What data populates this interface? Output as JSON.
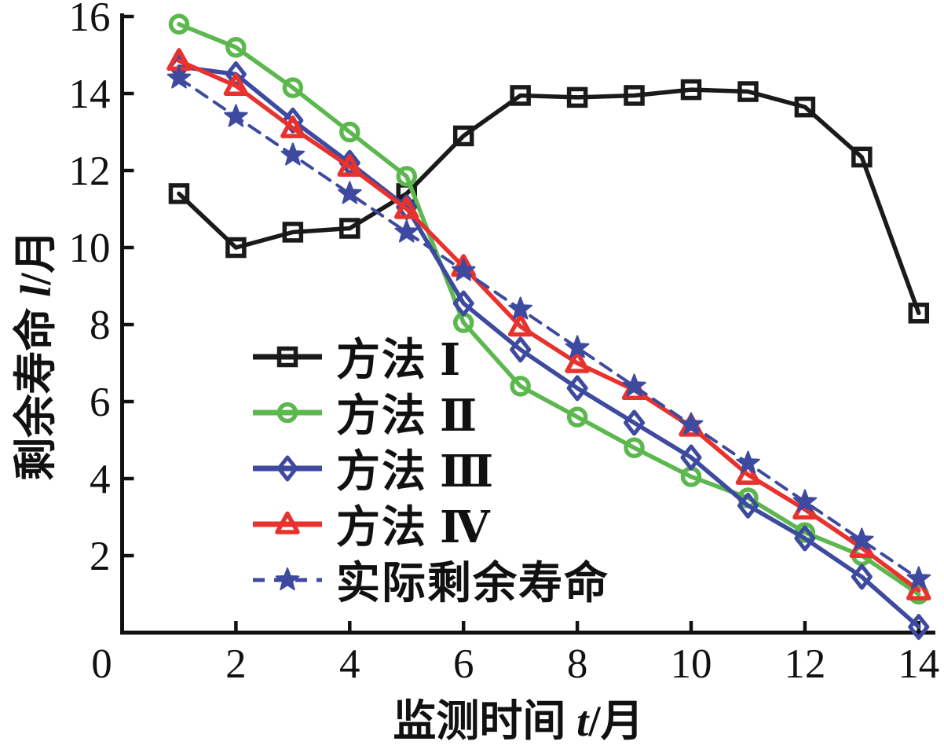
{
  "chart_data": {
    "type": "line",
    "title": "",
    "xlabel": "监测时间 t/月",
    "ylabel": "剩余寿命 l/月",
    "x": [
      1,
      2,
      3,
      4,
      5,
      6,
      7,
      8,
      9,
      10,
      11,
      12,
      13,
      14
    ],
    "x_ticks": [
      0,
      2,
      4,
      6,
      8,
      10,
      12,
      14
    ],
    "y_ticks": [
      2,
      4,
      6,
      8,
      10,
      12,
      14,
      16
    ],
    "xlim": [
      0,
      14.3
    ],
    "ylim": [
      0,
      16.1
    ],
    "grid": false,
    "legend_position": "inside-center-left",
    "series": [
      {
        "name": "方法 Ⅰ",
        "color": "#1a1a1a",
        "marker": "square",
        "line": "solid",
        "values": [
          11.4,
          10.0,
          10.4,
          10.5,
          11.4,
          12.9,
          13.95,
          13.9,
          13.95,
          14.1,
          14.05,
          13.65,
          12.35,
          8.3
        ]
      },
      {
        "name": "方法 Ⅱ",
        "color": "#5cb84e",
        "marker": "circle",
        "line": "solid",
        "values": [
          15.8,
          15.2,
          14.15,
          13.0,
          11.85,
          8.05,
          6.4,
          5.6,
          4.8,
          4.05,
          3.5,
          2.6,
          2.0,
          1.0
        ]
      },
      {
        "name": "方法 Ⅲ",
        "color": "#3d4a9f",
        "marker": "diamond",
        "line": "solid",
        "values": [
          14.7,
          14.5,
          13.3,
          12.2,
          11.05,
          8.55,
          7.35,
          6.35,
          5.45,
          4.55,
          3.3,
          2.45,
          1.45,
          0.15
        ]
      },
      {
        "name": "方法 Ⅳ",
        "color": "#e8322e",
        "marker": "triangle",
        "line": "solid",
        "values": [
          14.85,
          14.2,
          13.1,
          12.1,
          11.0,
          9.5,
          7.95,
          7.0,
          6.3,
          5.35,
          4.1,
          3.2,
          2.2,
          1.1
        ]
      },
      {
        "name": "实际剩余寿命",
        "color": "#3d4a9f",
        "marker": "star",
        "line": "dashed",
        "values": [
          14.4,
          13.4,
          12.4,
          11.4,
          10.4,
          9.4,
          8.4,
          7.4,
          6.4,
          5.4,
          4.4,
          3.4,
          2.4,
          1.4
        ]
      }
    ]
  },
  "labels": {
    "x_prefix": "监测时间 ",
    "x_var": "t",
    "x_unit": "/月",
    "y_prefix": "剩余寿命 ",
    "y_var": "l",
    "y_unit": "/月"
  }
}
